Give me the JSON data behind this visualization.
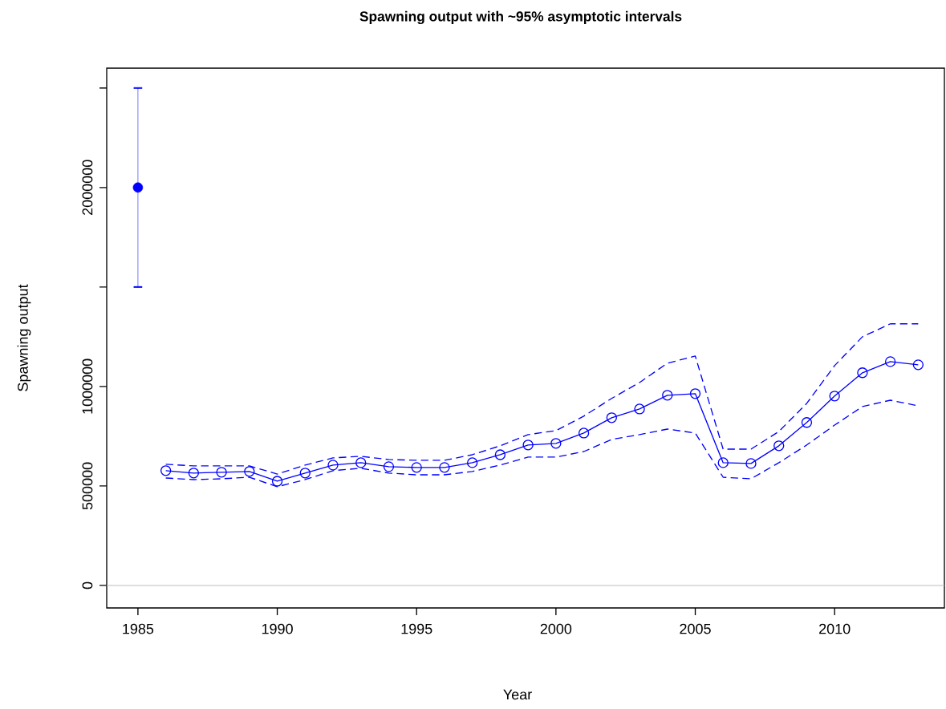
{
  "chart_data": {
    "type": "line",
    "title": "Spawning output with ~95% asymptotic intervals",
    "xlabel": "Year",
    "ylabel": "Spawning output",
    "xlim": [
      1983.88,
      2013.94
    ],
    "ylim": [
      -113000,
      2600000
    ],
    "xticks": [
      1985,
      1990,
      1995,
      2000,
      2005,
      2010
    ],
    "yticks": [
      0,
      500000,
      1000000,
      {
        "value": 1500000,
        "label": null
      },
      2000000,
      {
        "value": 2500000,
        "label": null
      }
    ],
    "ref_lines": [
      {
        "axis": "y",
        "value": 0,
        "color": "#bebebe"
      }
    ],
    "series": [
      {
        "type": "scatter",
        "x": [
          1985
        ],
        "values": [
          2000000
        ],
        "errors": [
          [
            1500000,
            2500000
          ]
        ],
        "color": "#0000ff",
        "marker": "circle"
      },
      {
        "x": [
          1986,
          1987,
          1988,
          1989,
          1990,
          1991,
          1992,
          1993,
          1994,
          1995,
          1996,
          1997,
          1998,
          1999,
          2000,
          2001,
          2002,
          2003,
          2004,
          2005,
          2006,
          2007,
          2008,
          2009,
          2010,
          2011,
          2012,
          2013
        ],
        "values": [
          577000,
          565000,
          569000,
          573000,
          524000,
          565000,
          605000,
          617000,
          597000,
          593000,
          593000,
          617000,
          657000,
          706000,
          714000,
          766000,
          843000,
          887000,
          956000,
          964000,
          617000,
          613000,
          702000,
          819000,
          952000,
          1069000,
          1125000,
          1109000
        ],
        "color": "#0000ff",
        "marker": "circle",
        "line_style": "solid"
      },
      {
        "x": [
          1986,
          1987,
          1988,
          1989,
          1990,
          1991,
          1992,
          1993,
          1994,
          1995,
          1996,
          1997,
          1998,
          1999,
          2000,
          2001,
          2002,
          2003,
          2004,
          2005,
          2006,
          2007,
          2008,
          2009,
          2010,
          2011,
          2012,
          2013
        ],
        "values": [
          540000,
          532000,
          536000,
          544000,
          496000,
          532000,
          577000,
          589000,
          565000,
          556000,
          556000,
          573000,
          605000,
          645000,
          645000,
          673000,
          734000,
          758000,
          786000,
          766000,
          544000,
          536000,
          617000,
          706000,
          806000,
          899000,
          931000,
          903000
        ],
        "color": "#0000ff",
        "marker": "none",
        "line_style": "dashed"
      },
      {
        "x": [
          1986,
          1987,
          1988,
          1989,
          1990,
          1991,
          1992,
          1993,
          1994,
          1995,
          1996,
          1997,
          1998,
          1999,
          2000,
          2001,
          2002,
          2003,
          2004,
          2005,
          2006,
          2007,
          2008,
          2009,
          2010,
          2011,
          2012,
          2013
        ],
        "values": [
          609000,
          601000,
          601000,
          601000,
          560000,
          605000,
          641000,
          649000,
          633000,
          629000,
          629000,
          657000,
          702000,
          758000,
          778000,
          851000,
          940000,
          1020000,
          1117000,
          1153000,
          685000,
          685000,
          774000,
          915000,
          1105000,
          1250000,
          1315000,
          1315000
        ],
        "color": "#0000ff",
        "marker": "none",
        "line_style": "dashed"
      }
    ]
  }
}
